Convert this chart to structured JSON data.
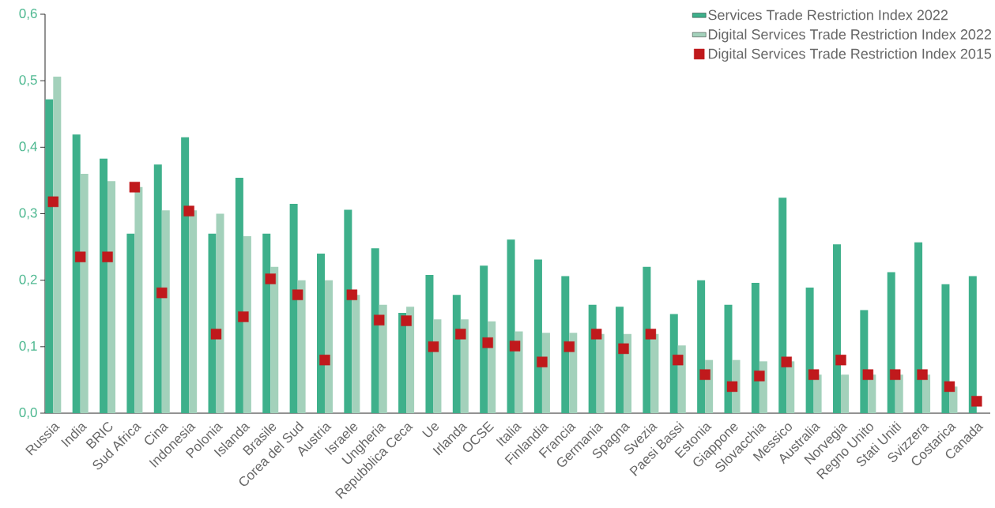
{
  "chart_data": {
    "type": "bar",
    "categories": [
      "Russia",
      "India",
      "BRIC",
      "Sud Africa",
      "Cina",
      "Indonesia",
      "Polonia",
      "Islanda",
      "Brasile",
      "Corea del Sud",
      "Austria",
      "Israele",
      "Ungheria",
      "Repubblica Ceca",
      "Ue",
      "Irlanda",
      "OCSE",
      "Italia",
      "Finlandia",
      "Francia",
      "Germania",
      "Spagna",
      "Svezia",
      "Paesi Bassi",
      "Estonia",
      "Giappone",
      "Slovacchia",
      "Messico",
      "Australia",
      "Norvegia",
      "Regno Unito",
      "Stati Uniti",
      "Svizzera",
      "Costarica",
      "Canada"
    ],
    "series": [
      {
        "name": "Services Trade Restriction Index 2022",
        "color": "#3eb08b",
        "values": [
          0.472,
          0.419,
          0.383,
          0.27,
          0.374,
          0.415,
          0.27,
          0.354,
          0.27,
          0.315,
          0.24,
          0.306,
          0.248,
          0.151,
          0.208,
          0.178,
          0.222,
          0.261,
          0.231,
          0.206,
          0.163,
          0.16,
          0.22,
          0.149,
          0.2,
          0.163,
          0.196,
          0.324,
          0.189,
          0.254,
          0.155,
          0.212,
          0.257,
          0.194,
          0.206
        ]
      },
      {
        "name": "Digital Services Trade Restriction Index 2022",
        "color": "#a3d1bb",
        "values": [
          0.506,
          0.36,
          0.349,
          0.34,
          0.305,
          0.305,
          0.3,
          0.266,
          0.22,
          0.2,
          0.2,
          0.178,
          0.163,
          0.16,
          0.141,
          0.141,
          0.138,
          0.123,
          0.121,
          0.121,
          0.119,
          0.119,
          0.119,
          0.102,
          0.08,
          0.08,
          0.078,
          0.078,
          0.058,
          0.058,
          0.058,
          0.058,
          0.058,
          0.04,
          null
        ]
      },
      {
        "name": "Digital Services Trade Restriction Index 2015",
        "type": "scatter",
        "marker": "square",
        "color": "#c0191c",
        "values": [
          0.318,
          0.235,
          0.235,
          0.34,
          0.181,
          0.304,
          0.119,
          0.145,
          0.202,
          0.178,
          0.08,
          0.178,
          0.14,
          0.139,
          0.1,
          0.119,
          0.106,
          0.101,
          0.077,
          0.1,
          0.119,
          0.097,
          0.119,
          0.08,
          0.058,
          0.04,
          0.056,
          0.077,
          0.058,
          0.08,
          0.058,
          0.058,
          0.058,
          0.04,
          0.018
        ]
      }
    ],
    "ylim": [
      0,
      0.6
    ],
    "yticks": [
      {
        "value": 0,
        "label": "0,0"
      },
      {
        "value": 0.1,
        "label": "0,1"
      },
      {
        "value": 0.2,
        "label": "0,2"
      },
      {
        "value": 0.3,
        "label": "0,3"
      },
      {
        "value": 0.4,
        "label": "0,4"
      },
      {
        "value": 0.5,
        "label": "0,5"
      },
      {
        "value": 0.6,
        "label": "0,6"
      }
    ],
    "legend": "top right"
  }
}
